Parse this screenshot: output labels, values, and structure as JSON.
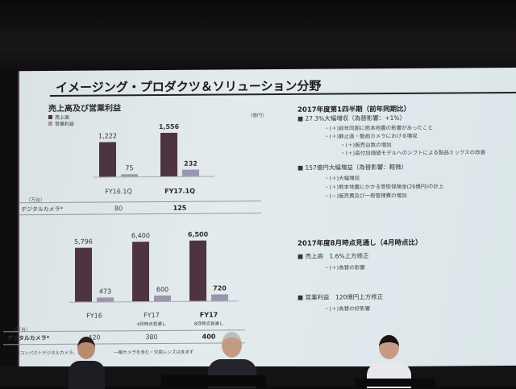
{
  "slide": {
    "title": "イメージング・プロダクツ＆ソリューション分野",
    "subtitle": "売上高及び営業利益",
    "legend": [
      "売上高",
      "営業利益"
    ],
    "unit_yen": "（億円）",
    "unit_units": "（万台）",
    "row_label": "デジタルカメラ*",
    "footnote_a": "*コンパクトデジタルカメラ、レ",
    "footnote_b": "一眼カメラを含む・交換レンズは含まず"
  },
  "chart_data": [
    {
      "type": "bar",
      "categories": [
        "FY16.1Q",
        "FY17.1Q"
      ],
      "series": [
        {
          "name": "売上高",
          "values": [
            1222,
            1556
          ],
          "color": "#4e3440"
        },
        {
          "name": "営業利益",
          "values": [
            75,
            232
          ],
          "color": "#9a96ad"
        }
      ],
      "value_labels": [
        [
          "1,222",
          "1,556"
        ],
        [
          "75",
          "232"
        ]
      ],
      "digital_camera": [
        "80",
        "125"
      ]
    },
    {
      "type": "bar",
      "categories": [
        "FY16",
        "FY17",
        "FY17"
      ],
      "category_notes": [
        "",
        "4月時点見通し",
        "8月時点見通し"
      ],
      "series": [
        {
          "name": "売上高",
          "values": [
            5796,
            6400,
            6500
          ],
          "color": "#4e3440"
        },
        {
          "name": "営業利益",
          "values": [
            473,
            600,
            720
          ],
          "color": "#9a96ad"
        }
      ],
      "value_labels": [
        [
          "5,796",
          "6,400",
          "6,500"
        ],
        [
          "473",
          "600",
          "720"
        ]
      ],
      "digital_camera": [
        "420",
        "380",
        "400"
      ]
    }
  ],
  "right": {
    "q1_heading": "2017年度第1四半期（前年同期比）",
    "q1_b1": "■ 27.3%大幅増収（為替影響：+1%）",
    "q1_b1_items": [
      "・(＋)前年同期に熊本地震の影響があったこと",
      "・(＋)静止画・動画カメラにおける増収"
    ],
    "q1_b1_sub": [
      "・(＋)販売台数の増加",
      "・(＋)高付加価値モデルへのシフトによる製品ミックスの改善"
    ],
    "q1_b2": "■ 157億円大幅増益（為替影響：軽微）",
    "q1_b2_items": [
      "・(＋)大幅増収",
      "・(＋)熊本地震にかかる受取保険金(26億円)の計上",
      "・(－)販売費及び一般管理費の増加"
    ],
    "fc_heading": "2017年度8月時点見通し（4月時点比）",
    "fc_b1": "■ 売上高　1.6%上方修正",
    "fc_b1_item": "・(＋)為替の影響",
    "fc_b2": "■ 営業利益　120億円上方修正",
    "fc_b2_item": "・(＋)為替の好影響"
  }
}
